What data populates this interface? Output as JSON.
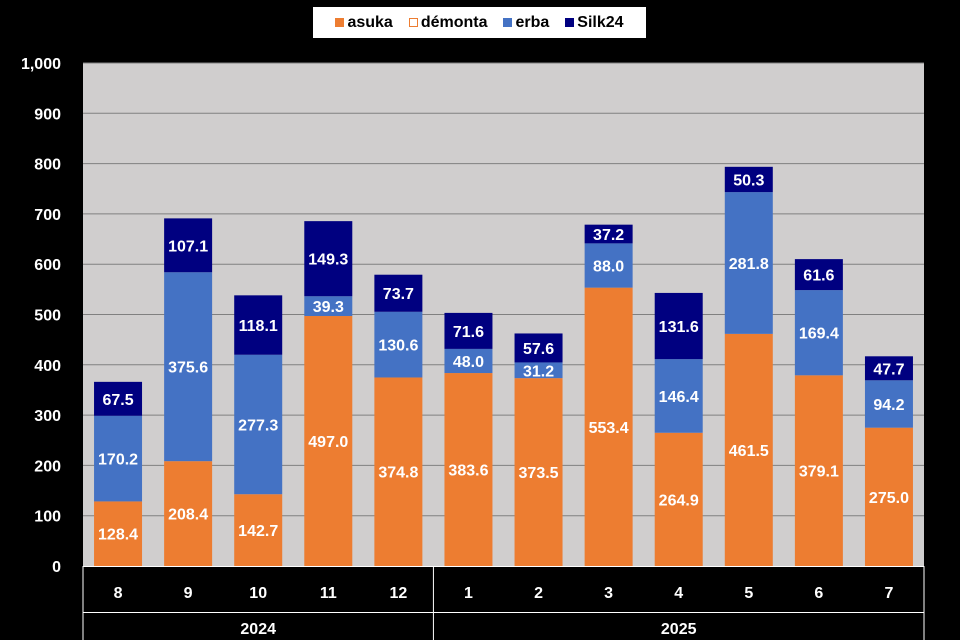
{
  "chart_data": {
    "type": "bar",
    "stacked": true,
    "categories": [
      "8",
      "9",
      "10",
      "11",
      "12",
      "1",
      "2",
      "3",
      "4",
      "5",
      "6",
      "7"
    ],
    "year_groups": [
      {
        "label": "2024",
        "count": 5
      },
      {
        "label": "2025",
        "count": 7
      }
    ],
    "series": [
      {
        "name": "asuka",
        "color": "#ED7D31",
        "values": [
          128.4,
          208.4,
          142.7,
          497.0,
          374.8,
          383.6,
          373.5,
          553.4,
          264.9,
          461.5,
          379.1,
          275.0
        ],
        "labels": [
          "128.4",
          "208.4",
          "142.7",
          "497.0",
          "374.8",
          "383.6",
          "373.5",
          "553.4",
          "264.9",
          "461.5",
          "379.1",
          "275.0"
        ]
      },
      {
        "name": "démonta",
        "color": "#FFFFFF",
        "outline": "#ED7D31",
        "values": [
          0,
          0,
          0,
          0,
          0,
          0,
          0,
          0,
          0,
          0,
          0,
          0
        ],
        "labels": []
      },
      {
        "name": "erba",
        "color": "#4472C4",
        "values": [
          170.2,
          375.6,
          277.3,
          39.3,
          130.6,
          48.0,
          31.2,
          88.0,
          146.4,
          281.8,
          169.4,
          94.2
        ],
        "labels": [
          "170.2",
          "375.6",
          "277.3",
          "39.3",
          "130.6",
          "48.0",
          "31.2",
          "88.0",
          "146.4",
          "281.8",
          "169.4",
          "94.2"
        ]
      },
      {
        "name": "Silk24",
        "color": "#000080",
        "values": [
          67.5,
          107.1,
          118.1,
          149.3,
          73.7,
          71.6,
          57.6,
          37.2,
          131.6,
          50.3,
          61.6,
          47.7
        ],
        "labels": [
          "67.5",
          "107.1",
          "118.1",
          "149.3",
          "73.7",
          "71.6",
          "57.6",
          "37.2",
          "131.6",
          "50.3",
          "61.6",
          "47.7"
        ]
      }
    ],
    "ylim": [
      0,
      1000
    ],
    "yticks": [
      {
        "value": 0,
        "label": "0"
      },
      {
        "value": 100,
        "label": "100"
      },
      {
        "value": 200,
        "label": "200"
      },
      {
        "value": 300,
        "label": "300"
      },
      {
        "value": 400,
        "label": "400"
      },
      {
        "value": 500,
        "label": "500"
      },
      {
        "value": 600,
        "label": "600"
      },
      {
        "value": 700,
        "label": "700"
      },
      {
        "value": 800,
        "label": "800"
      },
      {
        "value": 900,
        "label": "900"
      },
      {
        "value": 1000,
        "label": "1,000"
      }
    ],
    "grid": true,
    "legend_position": "top",
    "plot_background": "#D0CECE",
    "background": "#000000"
  }
}
